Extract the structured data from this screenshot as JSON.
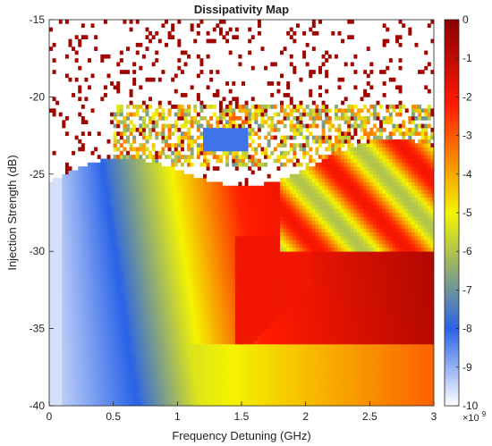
{
  "chart_data": {
    "type": "heatmap",
    "title": "Dissipativity Map",
    "xlabel": "Frequency Detuning (GHz)",
    "ylabel": "Injection Strength (dB)",
    "xlim": [
      0,
      3
    ],
    "ylim": [
      -40,
      -15
    ],
    "x_ticks": [
      {
        "value": 0,
        "label": "0"
      },
      {
        "value": 0.5,
        "label": "0.5"
      },
      {
        "value": 1,
        "label": "1"
      },
      {
        "value": 1.5,
        "label": "1.5"
      },
      {
        "value": 2,
        "label": "2"
      },
      {
        "value": 2.5,
        "label": "2.5"
      },
      {
        "value": 3,
        "label": "3"
      }
    ],
    "y_ticks": [
      {
        "value": -15,
        "label": "-15"
      },
      {
        "value": -20,
        "label": "-20"
      },
      {
        "value": -25,
        "label": "-25"
      },
      {
        "value": -30,
        "label": "-30"
      },
      {
        "value": -35,
        "label": "-35"
      },
      {
        "value": -40,
        "label": "-40"
      }
    ],
    "colorbar": {
      "range": [
        -10,
        0
      ],
      "multiplier": "×10",
      "exponent": "9",
      "ticks": [
        {
          "value": 0,
          "label": "0"
        },
        {
          "value": -1,
          "label": "-1"
        },
        {
          "value": -2,
          "label": "-2"
        },
        {
          "value": -3,
          "label": "-3"
        },
        {
          "value": -4,
          "label": "-4"
        },
        {
          "value": -5,
          "label": "-5"
        },
        {
          "value": -6,
          "label": "-6"
        },
        {
          "value": -7,
          "label": "-7"
        },
        {
          "value": -8,
          "label": "-8"
        },
        {
          "value": -9,
          "label": "-9"
        },
        {
          "value": -10,
          "label": "-10"
        }
      ],
      "colors": [
        "#ffffff",
        "#2a63e8",
        "#f4f400",
        "#ff1a00",
        "#8b0000"
      ]
    },
    "grid": false,
    "legend": "none"
  }
}
